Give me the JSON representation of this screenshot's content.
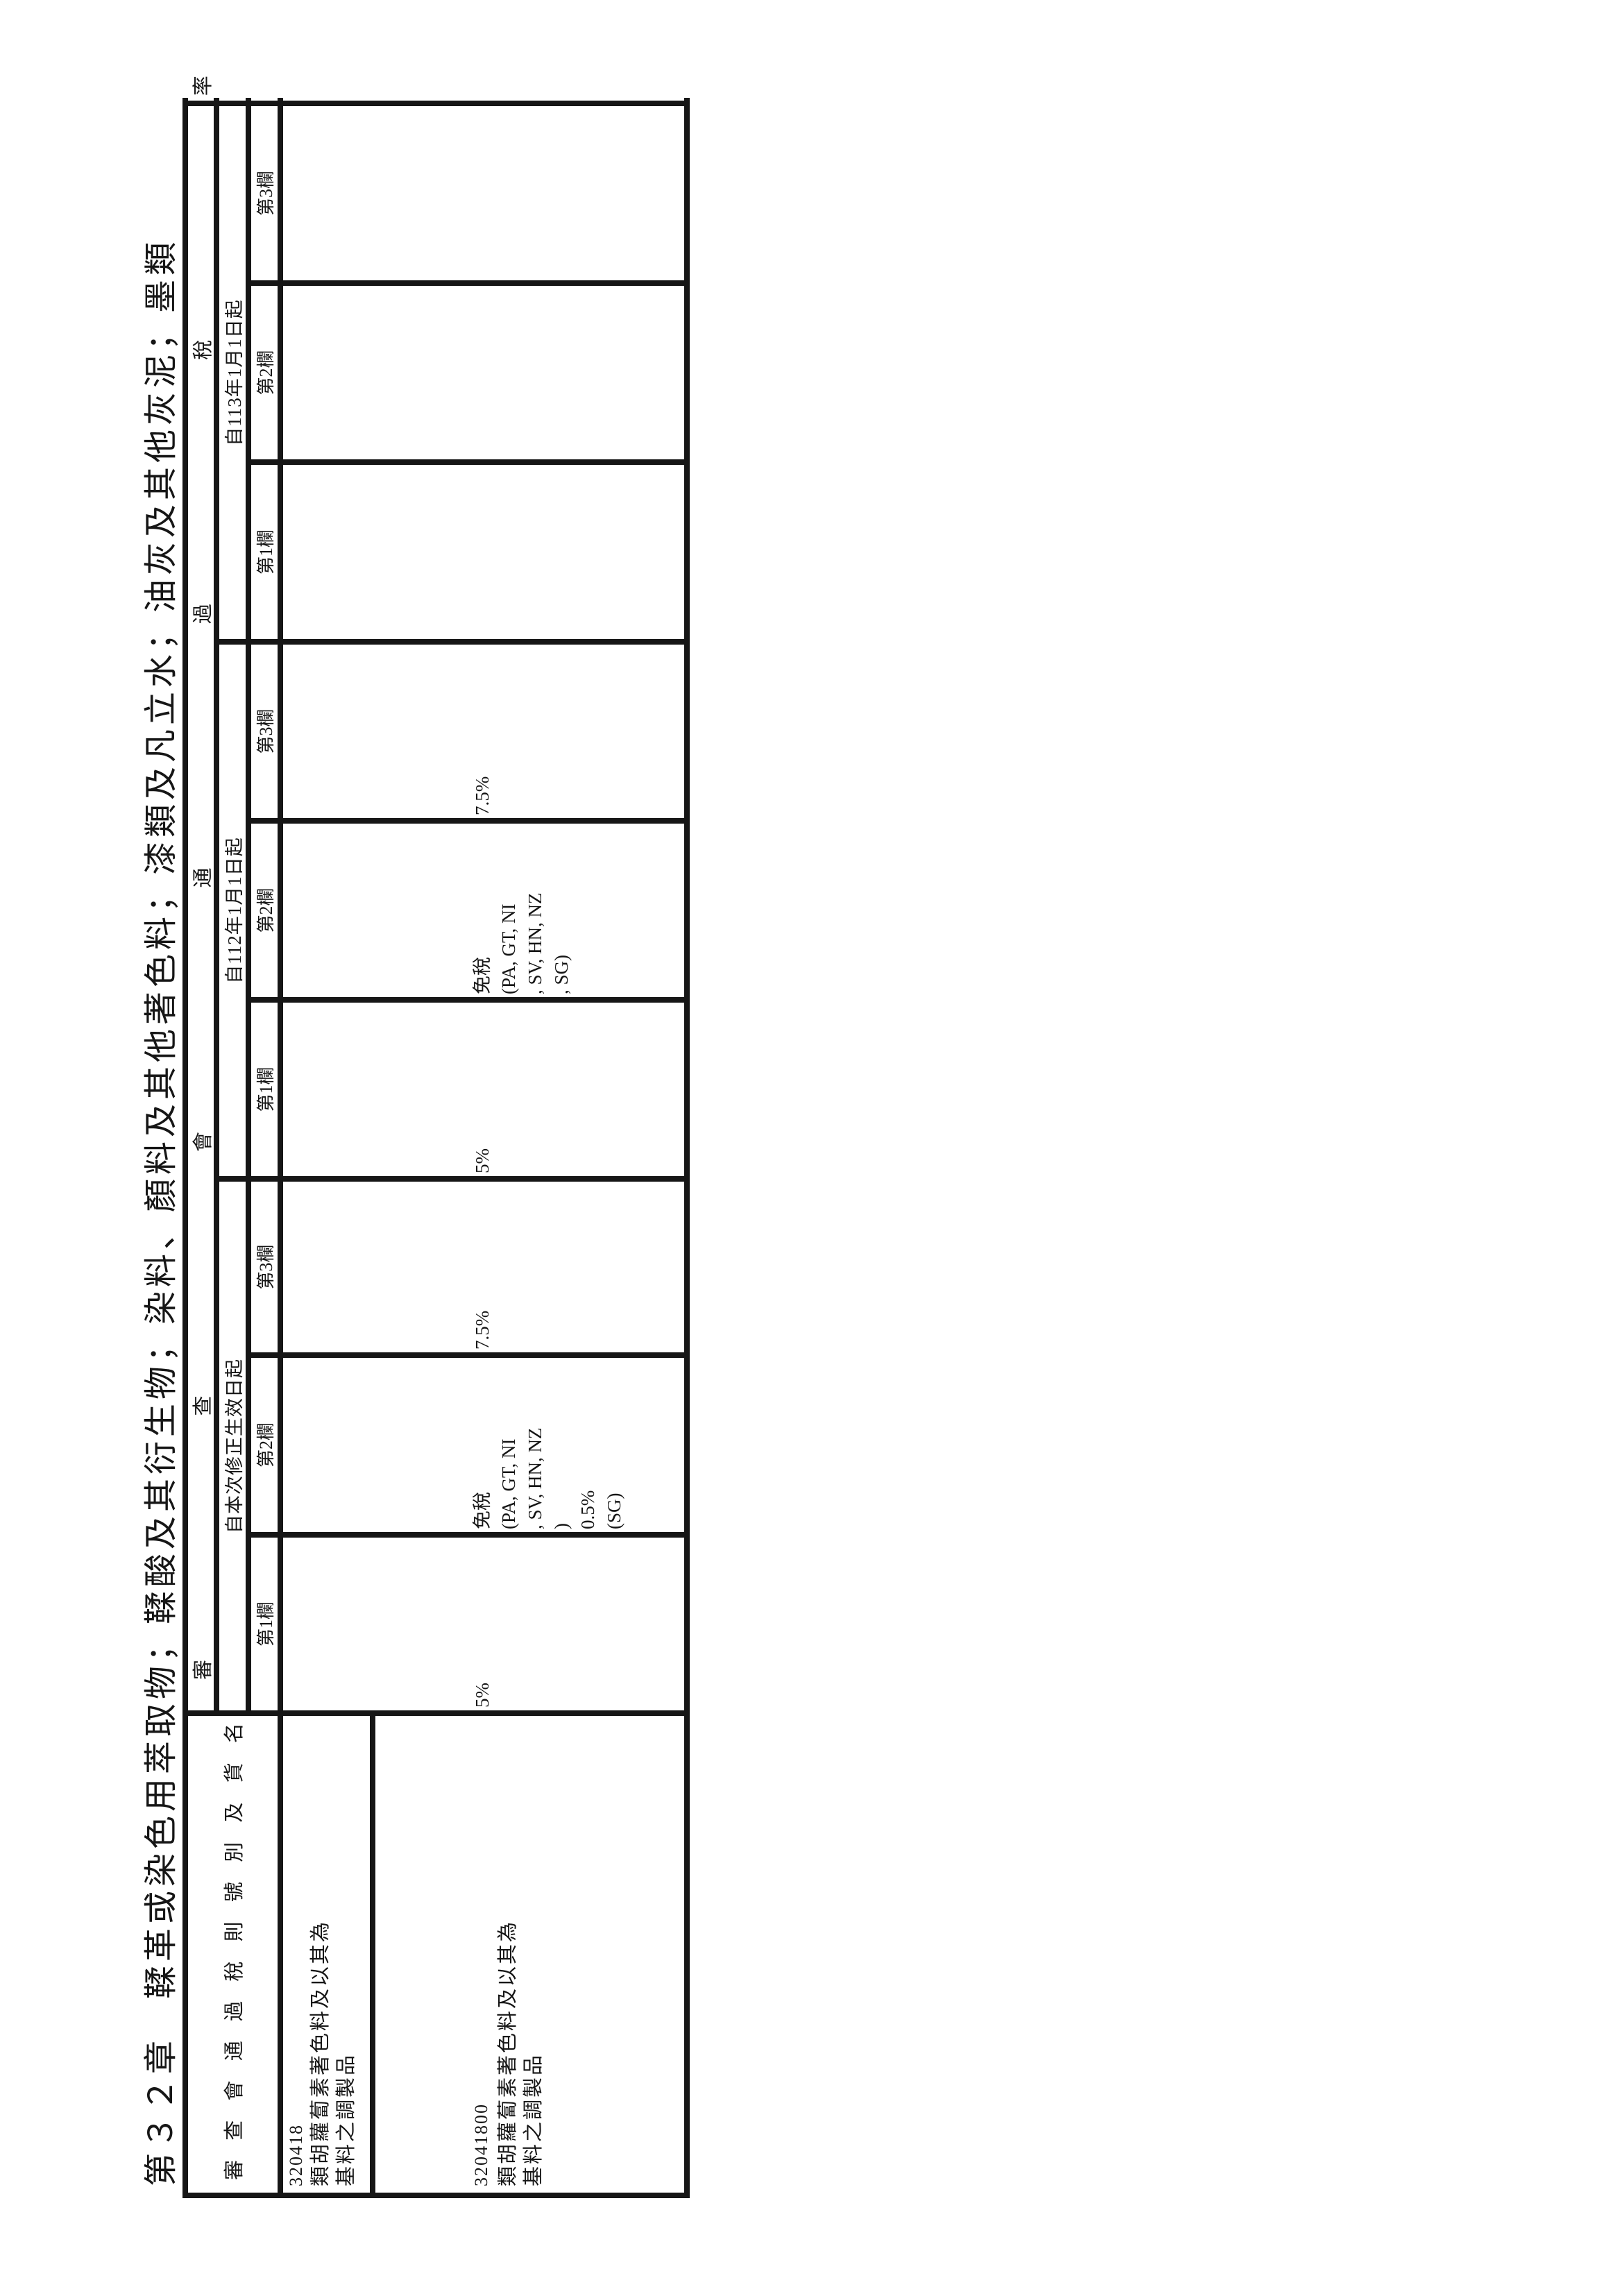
{
  "page": {
    "title": "第３２章　鞣革或染色用萃取物；鞣酸及其衍生物；染料、顏料及其他著色料；漆類及凡立水；油灰及其他灰泥；墨類"
  },
  "table": {
    "header": {
      "item_col_label": "審查會通過稅則號別及貨名",
      "rate_span_label": "審查會通過稅率",
      "periods": [
        {
          "label": "自本次修正生效日起",
          "columns": [
            "第1欄",
            "第2欄",
            "第3欄"
          ]
        },
        {
          "label": "自112年1月1日起",
          "columns": [
            "第1欄",
            "第2欄",
            "第3欄"
          ]
        },
        {
          "label": "自113年1月1日起",
          "columns": [
            "第1欄",
            "第2欄",
            "第3欄"
          ]
        }
      ]
    },
    "rows": [
      {
        "code": "320418",
        "description_lines": [
          "類胡蘿蔔素著色料及以其為",
          "基料之調製品"
        ],
        "rates": {
          "period1": {
            "col1": "",
            "col2_lines": [],
            "col3": ""
          },
          "period2": {
            "col1": "",
            "col2_lines": [],
            "col3": ""
          },
          "period3": {
            "col1": "",
            "col2_lines": [],
            "col3": ""
          }
        }
      },
      {
        "code": "32041800",
        "description_lines": [
          "類胡蘿蔔素著色料及以其為",
          "基料之調製品"
        ],
        "rates": {
          "period1": {
            "col1": "5%",
            "col2_lines": [
              "免稅",
              "(PA, GT, NI",
              ", SV, HN, NZ",
              ")",
              "0.5%",
              "(SG)"
            ],
            "col3": "7.5%"
          },
          "period2": {
            "col1": "5%",
            "col2_lines": [
              "免稅",
              "(PA, GT, NI",
              ", SV, HN, NZ",
              ", SG)"
            ],
            "col3": "7.5%"
          },
          "period3": {
            "col1": "",
            "col2_lines": [],
            "col3": ""
          }
        }
      }
    ]
  },
  "colors": {
    "ink": "#161616",
    "paper": "#ffffff"
  }
}
